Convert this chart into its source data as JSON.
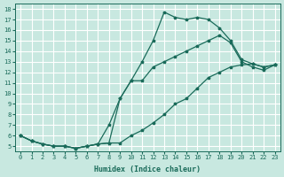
{
  "xlabel": "Humidex (Indice chaleur)",
  "ylabel": "",
  "xlim": [
    -0.5,
    23.5
  ],
  "ylim": [
    4.5,
    18.5
  ],
  "xticks": [
    0,
    1,
    2,
    3,
    4,
    5,
    6,
    7,
    8,
    9,
    10,
    11,
    12,
    13,
    14,
    15,
    16,
    17,
    18,
    19,
    20,
    21,
    22,
    23
  ],
  "yticks": [
    5,
    6,
    7,
    8,
    9,
    10,
    11,
    12,
    13,
    14,
    15,
    16,
    17,
    18
  ],
  "bg_color": "#c8e8e0",
  "grid_color": "#ffffff",
  "line_color": "#1a6b5a",
  "line1_x": [
    0,
    1,
    2,
    3,
    4,
    5,
    6,
    7,
    8,
    9,
    10,
    11,
    12,
    13,
    14,
    15,
    16,
    17,
    18,
    19,
    20,
    21,
    22,
    23
  ],
  "line1_y": [
    6.0,
    5.5,
    5.2,
    5.0,
    5.0,
    4.8,
    5.0,
    5.2,
    5.3,
    9.5,
    11.2,
    13.0,
    15.0,
    17.7,
    17.2,
    17.0,
    17.2,
    17.0,
    16.2,
    15.0,
    13.2,
    12.8,
    12.5,
    12.7
  ],
  "line2_x": [
    0,
    1,
    2,
    3,
    4,
    5,
    6,
    7,
    8,
    9,
    10,
    11,
    12,
    13,
    14,
    15,
    16,
    17,
    18,
    19,
    20,
    21,
    22,
    23
  ],
  "line2_y": [
    6.0,
    5.5,
    5.2,
    5.0,
    5.0,
    4.8,
    5.0,
    5.2,
    7.0,
    9.5,
    11.2,
    11.2,
    12.5,
    13.0,
    13.5,
    14.0,
    14.5,
    15.0,
    15.5,
    14.8,
    13.0,
    12.5,
    12.2,
    12.7
  ],
  "line3_x": [
    0,
    1,
    2,
    3,
    4,
    5,
    6,
    7,
    8,
    9,
    10,
    11,
    12,
    13,
    14,
    15,
    16,
    17,
    18,
    19,
    20,
    21,
    22,
    23
  ],
  "line3_y": [
    6.0,
    5.5,
    5.2,
    5.0,
    5.0,
    4.8,
    5.0,
    5.2,
    5.3,
    5.3,
    6.0,
    6.5,
    7.2,
    8.0,
    9.0,
    9.5,
    10.5,
    11.5,
    12.0,
    12.5,
    12.7,
    12.8,
    12.5,
    12.7
  ]
}
